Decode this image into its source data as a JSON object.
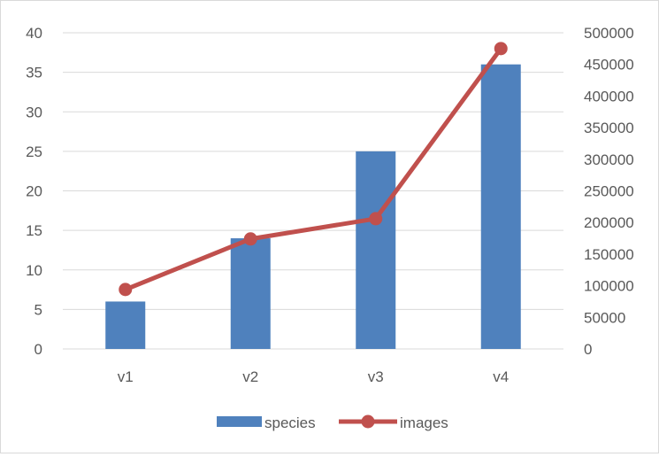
{
  "chart_data": {
    "type": "bar",
    "categories": [
      "v1",
      "v2",
      "v3",
      "v4"
    ],
    "series": [
      {
        "name": "species",
        "type": "bar",
        "axis": "left",
        "values": [
          6,
          14,
          25,
          36
        ]
      },
      {
        "name": "images",
        "type": "line",
        "axis": "right",
        "values": [
          94000,
          174000,
          206000,
          475000
        ]
      }
    ],
    "y_left": {
      "min": 0,
      "max": 40,
      "step": 5
    },
    "y_right": {
      "min": 0,
      "max": 500000,
      "step": 50000
    },
    "grid": true,
    "legend": "bottom",
    "colors": {
      "species": "#4f81bd",
      "images": "#c0504d",
      "grid": "#d9d9d9",
      "text": "#595959"
    }
  },
  "legend": {
    "species_label": "species",
    "images_label": "images"
  }
}
